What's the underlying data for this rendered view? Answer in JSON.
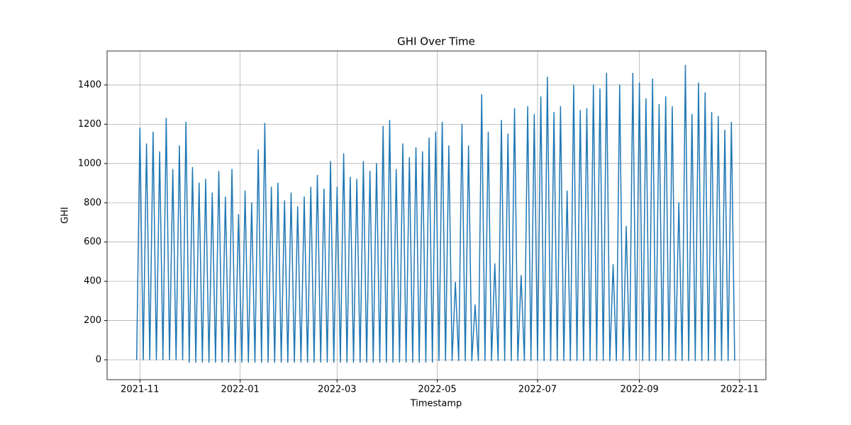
{
  "chart_data": {
    "type": "line",
    "title": "GHI Over Time",
    "x_label": "Timestamp",
    "y_label": "GHI",
    "xlim": [
      18912,
      19313
    ],
    "xticks": [
      {
        "value": 18932,
        "label": "2021-11"
      },
      {
        "value": 18993,
        "label": "2022-01"
      },
      {
        "value": 19052,
        "label": "2022-03"
      },
      {
        "value": 19113,
        "label": "2022-05"
      },
      {
        "value": 19174,
        "label": "2022-07"
      },
      {
        "value": 19236,
        "label": "2022-09"
      },
      {
        "value": 19297,
        "label": "2022-11"
      }
    ],
    "ylim": [
      -101,
      1573
    ],
    "yticks": [
      0,
      200,
      400,
      600,
      800,
      1000,
      1200,
      1400
    ],
    "grid": true,
    "series": [
      {
        "color": "#1f77b4",
        "x": [
          18930,
          18932,
          18934,
          18936,
          18938,
          18940,
          18942,
          18944,
          18946,
          18948,
          18950,
          18952,
          18954,
          18956,
          18958,
          18960,
          18962,
          18964,
          18966,
          18968,
          18970,
          18972,
          18974,
          18976,
          18978,
          18980,
          18982,
          18984,
          18986,
          18988,
          18990,
          18992,
          18994,
          18996,
          18998,
          19000,
          19002,
          19004,
          19006,
          19008,
          19010,
          19012,
          19014,
          19016,
          19018,
          19020,
          19022,
          19024,
          19026,
          19028,
          19030,
          19032,
          19034,
          19036,
          19038,
          19040,
          19042,
          19044,
          19046,
          19048,
          19050,
          19052,
          19054,
          19056,
          19058,
          19060,
          19062,
          19064,
          19066,
          19068,
          19070,
          19072,
          19074,
          19076,
          19078,
          19080,
          19082,
          19084,
          19086,
          19088,
          19090,
          19092,
          19094,
          19096,
          19098,
          19100,
          19102,
          19104,
          19106,
          19108,
          19110,
          19112,
          19114,
          19116,
          19118,
          19120,
          19122,
          19124,
          19126,
          19128,
          19130,
          19132,
          19134,
          19136,
          19138,
          19140,
          19142,
          19144,
          19146,
          19148,
          19150,
          19152,
          19154,
          19156,
          19158,
          19160,
          19162,
          19164,
          19166,
          19168,
          19170,
          19172,
          19174,
          19176,
          19178,
          19180,
          19182,
          19184,
          19186,
          19188,
          19190,
          19192,
          19194,
          19196,
          19198,
          19200,
          19202,
          19204,
          19206,
          19208,
          19210,
          19212,
          19214,
          19216,
          19218,
          19220,
          19222,
          19224,
          19226,
          19228,
          19230,
          19232,
          19234,
          19236,
          19238,
          19240,
          19242,
          19244,
          19246,
          19248,
          19250,
          19252,
          19254,
          19256,
          19258,
          19260,
          19262,
          19264,
          19266,
          19268,
          19270,
          19272,
          19274,
          19276,
          19278,
          19280,
          19282,
          19284,
          19286,
          19288,
          19290,
          19292,
          19294
        ],
        "values": [
          0,
          1180,
          0,
          1100,
          0,
          1160,
          0,
          1060,
          0,
          1230,
          0,
          970,
          0,
          1090,
          0,
          1210,
          -12,
          980,
          -12,
          900,
          -12,
          920,
          -12,
          850,
          -12,
          960,
          -12,
          830,
          -12,
          970,
          -12,
          740,
          -12,
          860,
          -12,
          800,
          -12,
          1070,
          -12,
          1205,
          -12,
          880,
          -12,
          900,
          -12,
          810,
          -12,
          850,
          -12,
          780,
          -12,
          830,
          -12,
          880,
          -12,
          940,
          -12,
          870,
          -12,
          1010,
          -12,
          880,
          -12,
          1050,
          -12,
          930,
          -12,
          920,
          -12,
          1010,
          -12,
          960,
          -12,
          1000,
          -12,
          1190,
          -12,
          1220,
          -12,
          970,
          -12,
          1100,
          -12,
          1030,
          -12,
          1080,
          -12,
          1060,
          -12,
          1130,
          -12,
          1160,
          -4,
          1210,
          -4,
          1090,
          -4,
          395,
          -4,
          1200,
          -4,
          1090,
          -4,
          280,
          -4,
          1350,
          -4,
          1160,
          -4,
          490,
          -4,
          1220,
          -4,
          1150,
          -4,
          1280,
          -4,
          430,
          -4,
          1290,
          -4,
          1250,
          -4,
          1340,
          -4,
          1440,
          -4,
          1260,
          -4,
          1290,
          -4,
          860,
          -4,
          1400,
          -4,
          1270,
          -4,
          1280,
          -4,
          1400,
          -4,
          1380,
          -4,
          1460,
          -4,
          485,
          -4,
          1400,
          -4,
          680,
          -4,
          1460,
          -4,
          1410,
          -4,
          1330,
          -4,
          1430,
          -4,
          1300,
          -4,
          1340,
          -4,
          1290,
          -4,
          800,
          -4,
          1500,
          -4,
          1250,
          -4,
          1410,
          -4,
          1360,
          -4,
          1260,
          -4,
          1240,
          -4,
          1170,
          -4,
          1210,
          -4
        ]
      }
    ]
  }
}
